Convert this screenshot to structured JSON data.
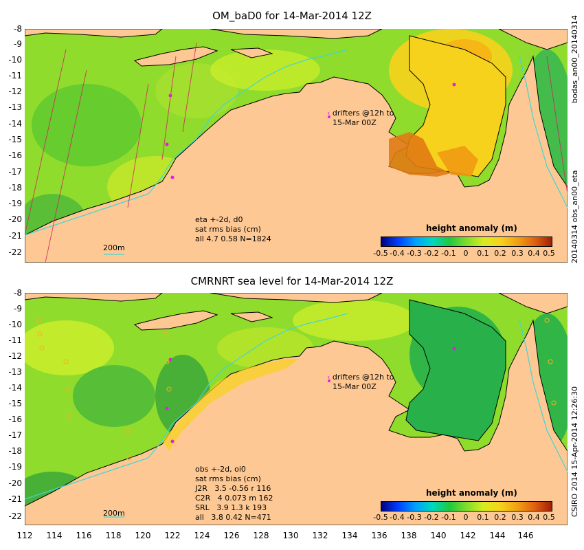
{
  "panels": [
    {
      "title": "OM_baD0 for 14-Mar-2014 12Z",
      "annotation": [
        "eta +-2d, d0",
        "sat rms bias (cm)",
        "all 4.7 0.58 N=1824"
      ],
      "drifters": [
        "drifters @12h to",
        "15-Mar 00Z"
      ],
      "scale_label": "200m",
      "colorbar_title": "height anomaly (m)",
      "colorbar_ticks": [
        "-0.5",
        "-0.4",
        "-0.3",
        "-0.2",
        "-0.1",
        "0",
        "0.1",
        "0.2",
        "0.3",
        "0.4",
        "0.5"
      ]
    },
    {
      "title": "CMRNRT sea level  for 14-Mar-2014 12Z",
      "annotation": [
        "obs +-2d, oi0",
        "sat rms bias (cm)",
        "J2R   3.5 -0.56 r 116",
        "C2R   4 0.073 m 162",
        "SRL   3.9 1.3 k 193",
        "all   3.8 0.42 N=471"
      ],
      "drifters": [
        "drifters @12h to",
        "15-Mar 00Z"
      ],
      "scale_label": "200m",
      "colorbar_title": "height anomaly (m)",
      "colorbar_ticks": [
        "-0.5",
        "-0.4",
        "-0.3",
        "-0.2",
        "-0.1",
        "0",
        "0.1",
        "0.2",
        "0.3",
        "0.4",
        "0.5"
      ]
    }
  ],
  "y_axis_labels": [
    "-8",
    "-9",
    "-10",
    "-11",
    "-12",
    "-13",
    "-14",
    "-15",
    "-16",
    "-17",
    "-18",
    "-19",
    "-20",
    "-21",
    "-22"
  ],
  "x_axis_labels": [
    "112",
    "114",
    "116",
    "118",
    "120",
    "122",
    "124",
    "126",
    "128",
    "130",
    "132",
    "134",
    "136",
    "138",
    "140",
    "142",
    "144",
    "146"
  ],
  "side_labels": {
    "top_right_a": "bodas_an00_20140314",
    "top_right_b": "20140314 obs_an00_eta",
    "bottom_right": "CSIRO 2014  15-Apr-2014 12:26:30"
  },
  "colors": {
    "land": "#fdc893",
    "ocean_base": "#8fdc2c",
    "contour": "#3fd6d6",
    "drifter": "#e020e0"
  }
}
